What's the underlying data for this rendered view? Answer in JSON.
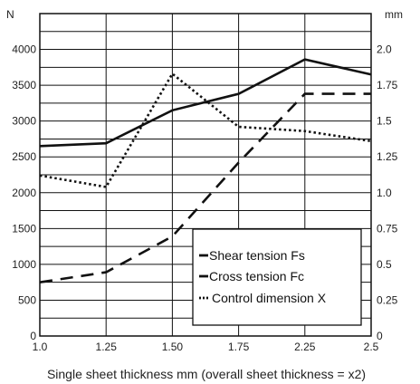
{
  "chart_data": {
    "type": "line",
    "xlabel": "Single sheet thickness mm (overall sheet thickness = x2)",
    "y_left_unit": "N",
    "y_right_unit": "mm",
    "x_ticks": [
      "1.0",
      "1.25",
      "1.50",
      "1.75",
      "2.25",
      "2.5"
    ],
    "y_left_ticks": [
      0,
      500,
      1000,
      1500,
      2000,
      2500,
      3000,
      3500,
      4000
    ],
    "y_right_ticks": [
      "0",
      "0.25",
      "0.5",
      "0.75",
      "1.0",
      "1.25",
      "1.5",
      "1.75",
      "2.0"
    ],
    "y_left_range": [
      0,
      4500
    ],
    "y_right_range": [
      0,
      2.25
    ],
    "grid": true,
    "legend_position": "bottom-right",
    "series": [
      {
        "name": "Shear tension Fs",
        "axis": "left",
        "style": "solid",
        "color": "#111111",
        "values": [
          2650,
          2690,
          3150,
          3380,
          3860,
          3650
        ]
      },
      {
        "name": "Cross tension Fc",
        "axis": "left",
        "style": "dashed",
        "color": "#111111",
        "values": [
          750,
          890,
          1390,
          2420,
          3380,
          3380
        ]
      },
      {
        "name": "Control dimension X",
        "axis": "right",
        "style": "dotted",
        "color": "#111111",
        "values": [
          1.12,
          1.04,
          1.83,
          1.46,
          1.43,
          1.36
        ]
      }
    ]
  }
}
